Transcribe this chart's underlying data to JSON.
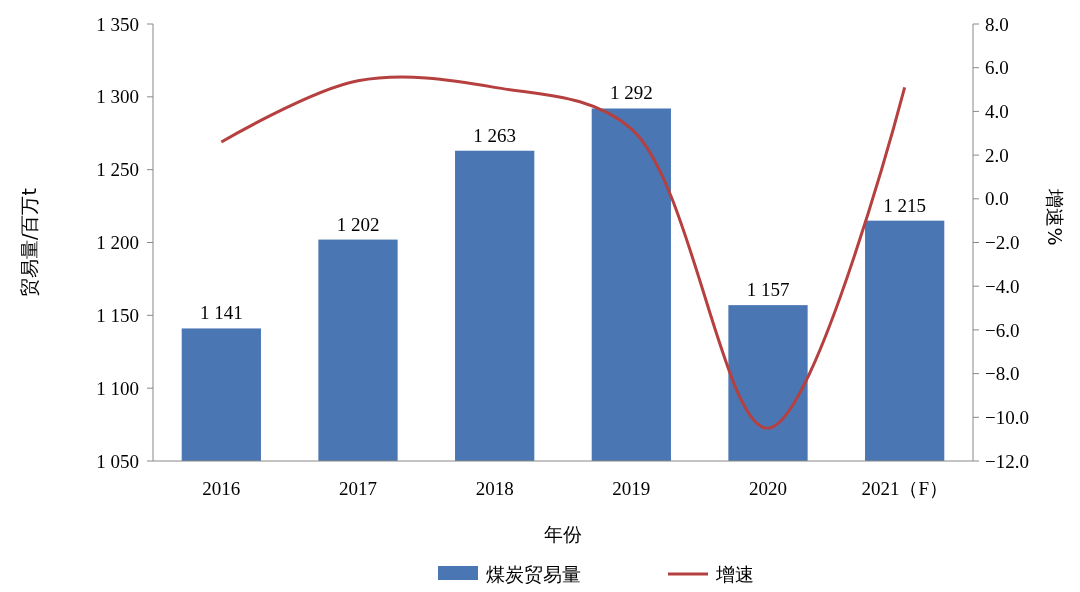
{
  "chart_data": {
    "type": "bar",
    "xlabel": "年份",
    "ylabel": "贸易量/百万t",
    "y2label": "增速%",
    "categories": [
      "2016",
      "2017",
      "2018",
      "2019",
      "2020",
      "2021（F）"
    ],
    "series": [
      {
        "name": "煤炭贸易量",
        "color": "#4a76b4",
        "values": [
          1141,
          1202,
          1263,
          1292,
          1157,
          1215
        ],
        "value_labels": [
          "1 141",
          "1 202",
          "1 263",
          "1 292",
          "1 157",
          "1 215"
        ]
      },
      {
        "name": "增速",
        "type": "line",
        "axis": "y2",
        "color": "#b5403f",
        "values": [
          2.6,
          5.4,
          5.1,
          3.2,
          -10.5,
          5.1
        ]
      }
    ],
    "ylim": [
      1050,
      1350
    ],
    "yticks": [
      {
        "value": 1050,
        "label": "1 050"
      },
      {
        "value": 1100,
        "label": "1 100"
      },
      {
        "value": 1150,
        "label": "1 150"
      },
      {
        "value": 1200,
        "label": "1 200"
      },
      {
        "value": 1250,
        "label": "1 250"
      },
      {
        "value": 1300,
        "label": "1 300"
      },
      {
        "value": 1350,
        "label": "1 350"
      }
    ],
    "y2lim": [
      -12,
      8
    ],
    "y2ticks": [
      {
        "value": -12,
        "label": "−12.0"
      },
      {
        "value": -10,
        "label": "−10.0"
      },
      {
        "value": -8,
        "label": "−8.0"
      },
      {
        "value": -6,
        "label": "−6.0"
      },
      {
        "value": -4,
        "label": "−4.0"
      },
      {
        "value": -2,
        "label": "−2.0"
      },
      {
        "value": 0,
        "label": "0.0"
      },
      {
        "value": 2,
        "label": "2.0"
      },
      {
        "value": 4,
        "label": "4.0"
      },
      {
        "value": 6,
        "label": "6.0"
      },
      {
        "value": 8,
        "label": "8.0"
      }
    ],
    "grid": false,
    "legend": "bottom"
  }
}
